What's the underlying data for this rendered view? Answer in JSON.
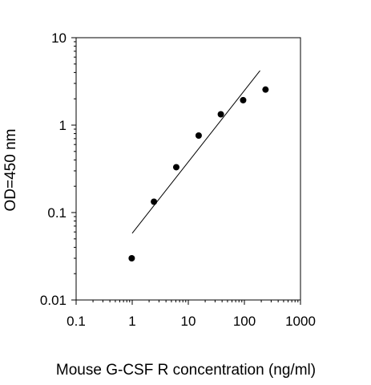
{
  "chart_data": {
    "type": "scatter",
    "title": "",
    "xlabel": "Mouse G-CSF R concentration (ng/ml)",
    "ylabel": "OD=450 nm",
    "x_scale": "log",
    "y_scale": "log",
    "xlim": [
      0.1,
      1000
    ],
    "ylim": [
      0.01,
      10
    ],
    "x_ticks": [
      0.1,
      1,
      10,
      100,
      1000
    ],
    "x_tick_labels": [
      "0.1",
      "1",
      "10",
      "100",
      "1000"
    ],
    "y_ticks": [
      0.01,
      0.1,
      1,
      10
    ],
    "y_tick_labels": [
      "0.01",
      "0.1",
      "1",
      "10"
    ],
    "grid": false,
    "legend": "none",
    "series": [
      {
        "points": [
          {
            "x": 0.98,
            "y": 0.03
          },
          {
            "x": 2.44,
            "y": 0.133
          },
          {
            "x": 6.1,
            "y": 0.33
          },
          {
            "x": 15.3,
            "y": 0.76
          },
          {
            "x": 38,
            "y": 1.33
          },
          {
            "x": 95,
            "y": 1.93
          },
          {
            "x": 238,
            "y": 2.55
          }
        ]
      }
    ],
    "fit_line": {
      "x": [
        1,
        190
      ],
      "y": [
        0.058,
        4.2
      ]
    },
    "colors": {
      "points": "#000000",
      "line": "#000000",
      "axes": "#000000"
    }
  }
}
